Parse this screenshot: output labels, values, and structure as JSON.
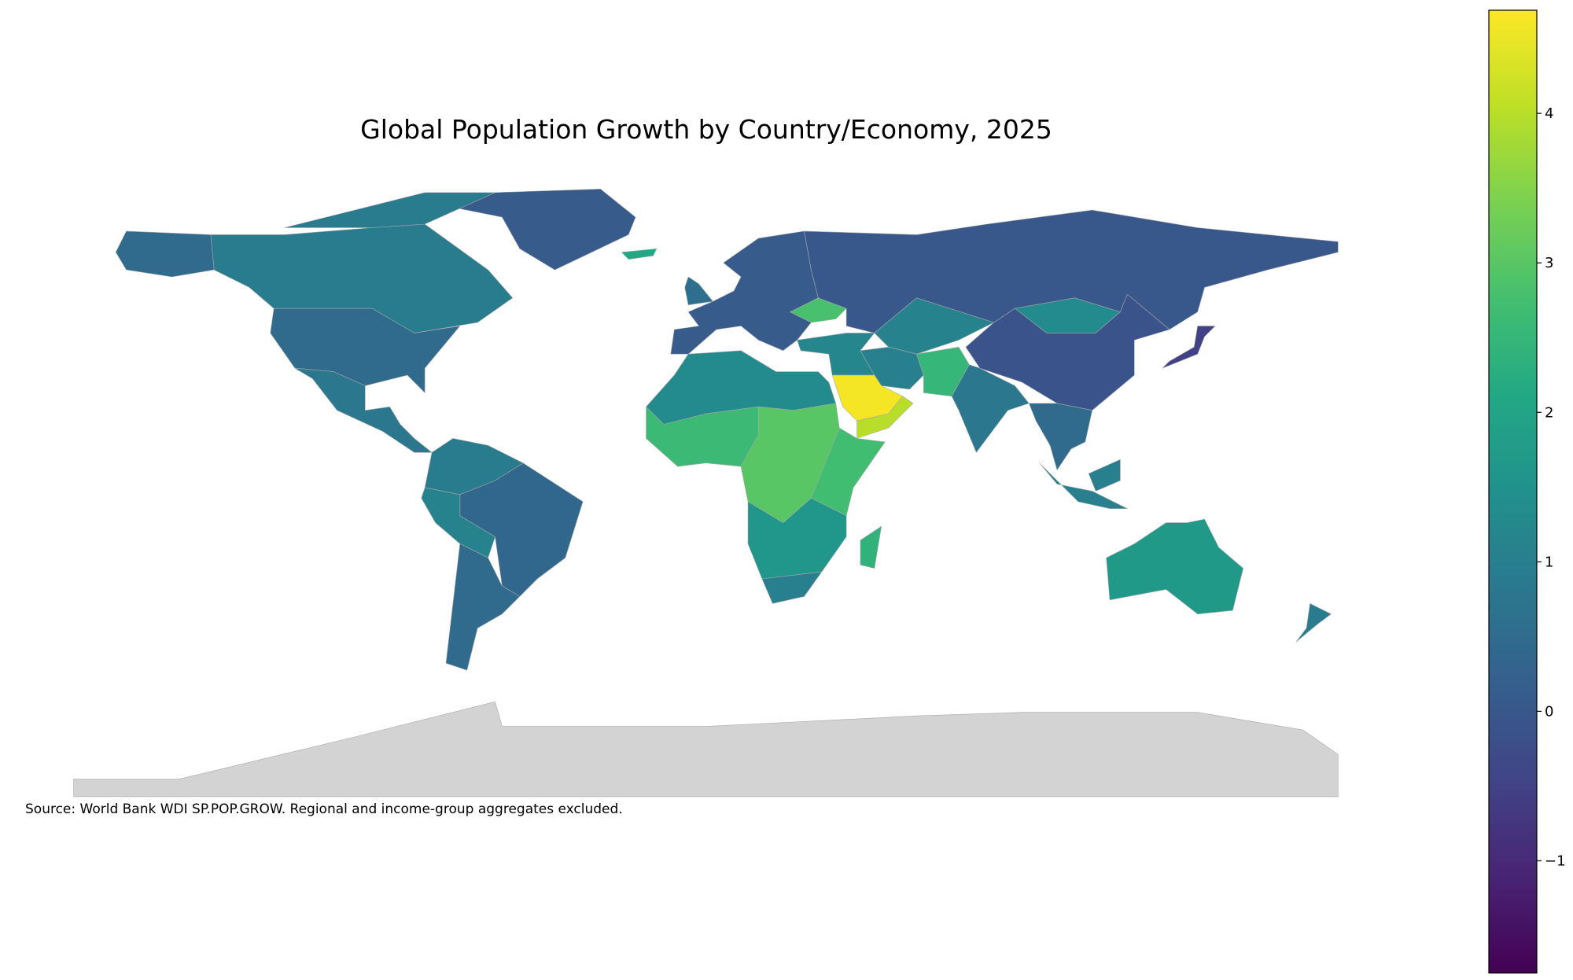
{
  "chart_data": {
    "type": "choropleth",
    "title": "Global Population Growth by Country/Economy, 2025",
    "note": "Source: World Bank WDI SP.POP.GROW. Regional and income-group aggregates excluded.",
    "colormap": "viridis",
    "missing_color": "#d3d3d3",
    "clim": [
      -1.75,
      4.69
    ],
    "cticks": [
      {
        "value": -1,
        "label": "−1"
      },
      0,
      1,
      2,
      3,
      4
    ],
    "values": [
      0.9,
      0.5,
      0.8,
      0.1,
      0.9,
      0.4,
      1.1,
      0.5,
      0.1,
      0.6,
      2.8,
      0.0,
      1.1,
      1.3,
      -0.1,
      1.2,
      1.0,
      2.5,
      4.6,
      4.0,
      0.8,
      0.5,
      -0.5,
      1.0,
      1.7,
      0.9,
      1.3,
      2.6,
      3.0,
      2.7,
      1.6,
      1.0,
      2.4,
      2.1,
      0.9
    ]
  }
}
